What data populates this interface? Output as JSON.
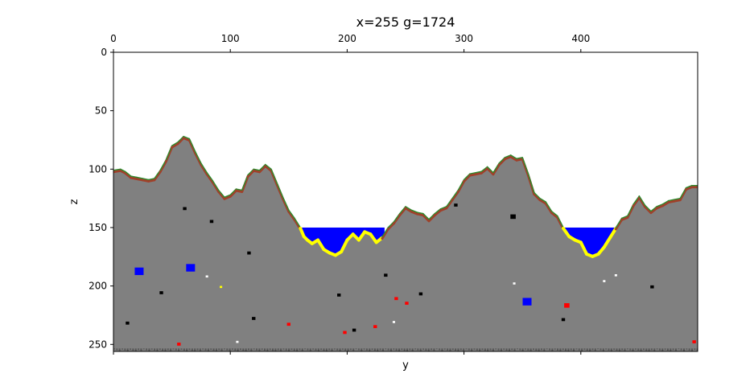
{
  "chart_data": {
    "type": "heatmap",
    "title": "x=255 g=1724",
    "xlabel": "y",
    "ylabel": "z",
    "x_axis_position": "top",
    "xlim": [
      0,
      500
    ],
    "ylim": [
      256,
      0
    ],
    "x_ticks": [
      0,
      100,
      200,
      300,
      400
    ],
    "y_ticks": [
      0,
      50,
      100,
      150,
      200,
      250
    ],
    "grid": false,
    "water_level": 150,
    "colors": {
      "background": "#ffffff",
      "air": "#ffffff",
      "stone": "#808080",
      "water": "#0000ff",
      "sand": "#ffff00",
      "dirt": "#a0402a",
      "grass": "#2e8b2e",
      "lava": "#ff0000",
      "cave": "#000000",
      "bedrock": "#555555",
      "ore_white": "#ffffff",
      "ore_yellow": "#ffff00"
    },
    "terrain_surface": [
      [
        0,
        101
      ],
      [
        6,
        100
      ],
      [
        10,
        102
      ],
      [
        15,
        106
      ],
      [
        20,
        107
      ],
      [
        25,
        108
      ],
      [
        30,
        109
      ],
      [
        35,
        108
      ],
      [
        40,
        101
      ],
      [
        45,
        92
      ],
      [
        50,
        80
      ],
      [
        55,
        77
      ],
      [
        60,
        72
      ],
      [
        65,
        74
      ],
      [
        70,
        85
      ],
      [
        75,
        95
      ],
      [
        80,
        103
      ],
      [
        85,
        110
      ],
      [
        90,
        118
      ],
      [
        95,
        124
      ],
      [
        100,
        122
      ],
      [
        105,
        117
      ],
      [
        110,
        118
      ],
      [
        115,
        105
      ],
      [
        120,
        100
      ],
      [
        125,
        101
      ],
      [
        130,
        96
      ],
      [
        135,
        100
      ],
      [
        140,
        112
      ],
      [
        145,
        124
      ],
      [
        150,
        135
      ],
      [
        155,
        142
      ],
      [
        160,
        150
      ],
      [
        163,
        157
      ],
      [
        166,
        160
      ],
      [
        170,
        163
      ],
      [
        175,
        160
      ],
      [
        180,
        168
      ],
      [
        185,
        171
      ],
      [
        190,
        173
      ],
      [
        195,
        170
      ],
      [
        200,
        160
      ],
      [
        205,
        155
      ],
      [
        210,
        160
      ],
      [
        215,
        153
      ],
      [
        220,
        155
      ],
      [
        225,
        162
      ],
      [
        230,
        158
      ],
      [
        235,
        150
      ],
      [
        240,
        145
      ],
      [
        245,
        138
      ],
      [
        250,
        132
      ],
      [
        255,
        135
      ],
      [
        260,
        137
      ],
      [
        265,
        138
      ],
      [
        270,
        143
      ],
      [
        275,
        138
      ],
      [
        280,
        134
      ],
      [
        285,
        132
      ],
      [
        290,
        125
      ],
      [
        295,
        118
      ],
      [
        300,
        109
      ],
      [
        305,
        104
      ],
      [
        310,
        103
      ],
      [
        315,
        102
      ],
      [
        320,
        98
      ],
      [
        325,
        103
      ],
      [
        330,
        95
      ],
      [
        335,
        90
      ],
      [
        340,
        88
      ],
      [
        345,
        91
      ],
      [
        350,
        90
      ],
      [
        355,
        104
      ],
      [
        360,
        120
      ],
      [
        365,
        125
      ],
      [
        370,
        128
      ],
      [
        375,
        136
      ],
      [
        380,
        140
      ],
      [
        385,
        150
      ],
      [
        390,
        157
      ],
      [
        395,
        160
      ],
      [
        400,
        162
      ],
      [
        405,
        172
      ],
      [
        410,
        174
      ],
      [
        415,
        172
      ],
      [
        420,
        166
      ],
      [
        425,
        158
      ],
      [
        430,
        150
      ],
      [
        435,
        142
      ],
      [
        440,
        140
      ],
      [
        445,
        130
      ],
      [
        450,
        123
      ],
      [
        455,
        131
      ],
      [
        460,
        136
      ],
      [
        465,
        132
      ],
      [
        470,
        130
      ],
      [
        475,
        127
      ],
      [
        480,
        126
      ],
      [
        485,
        125
      ],
      [
        490,
        116
      ],
      [
        495,
        114
      ],
      [
        500,
        114
      ]
    ],
    "water_bodies": [
      {
        "y_start": 161,
        "y_end": 232
      },
      {
        "y_start": 385,
        "y_end": 430
      }
    ],
    "blobs": [
      {
        "y": 22,
        "z": 188,
        "material": "water",
        "size": 2.5
      },
      {
        "y": 66,
        "z": 185,
        "material": "water",
        "size": 2.5
      },
      {
        "y": 354,
        "z": 214,
        "material": "water",
        "size": 2.5
      },
      {
        "y": 61,
        "z": 134,
        "material": "cave",
        "size": 1
      },
      {
        "y": 84,
        "z": 145,
        "material": "cave",
        "size": 1
      },
      {
        "y": 116,
        "z": 172,
        "material": "cave",
        "size": 1
      },
      {
        "y": 293,
        "z": 131,
        "material": "cave",
        "size": 1
      },
      {
        "y": 342,
        "z": 141,
        "material": "cave",
        "size": 1.5
      },
      {
        "y": 41,
        "z": 206,
        "material": "cave",
        "size": 1
      },
      {
        "y": 193,
        "z": 208,
        "material": "cave",
        "size": 1
      },
      {
        "y": 233,
        "z": 191,
        "material": "cave",
        "size": 1
      },
      {
        "y": 263,
        "z": 207,
        "material": "cave",
        "size": 1
      },
      {
        "y": 461,
        "z": 201,
        "material": "cave",
        "size": 1
      },
      {
        "y": 12,
        "z": 232,
        "material": "cave",
        "size": 1
      },
      {
        "y": 120,
        "z": 228,
        "material": "cave",
        "size": 1
      },
      {
        "y": 206,
        "z": 238,
        "material": "cave",
        "size": 1
      },
      {
        "y": 385,
        "z": 229,
        "material": "cave",
        "size": 1
      },
      {
        "y": 251,
        "z": 215,
        "material": "lava",
        "size": 1
      },
      {
        "y": 242,
        "z": 211,
        "material": "lava",
        "size": 1
      },
      {
        "y": 388,
        "z": 217,
        "material": "lava",
        "size": 1.5
      },
      {
        "y": 150,
        "z": 233,
        "material": "lava",
        "size": 1
      },
      {
        "y": 224,
        "z": 235,
        "material": "lava",
        "size": 1
      },
      {
        "y": 198,
        "z": 240,
        "material": "lava",
        "size": 1
      },
      {
        "y": 56,
        "z": 250,
        "material": "lava",
        "size": 1
      },
      {
        "y": 497,
        "z": 248,
        "material": "lava",
        "size": 1
      },
      {
        "y": 80,
        "z": 192,
        "material": "ore_white",
        "size": 0.7
      },
      {
        "y": 343,
        "z": 198,
        "material": "ore_white",
        "size": 0.7
      },
      {
        "y": 420,
        "z": 196,
        "material": "ore_white",
        "size": 0.7
      },
      {
        "y": 430,
        "z": 191,
        "material": "ore_white",
        "size": 0.7
      },
      {
        "y": 240,
        "z": 231,
        "material": "ore_white",
        "size": 0.7
      },
      {
        "y": 106,
        "z": 248,
        "material": "ore_white",
        "size": 0.7
      },
      {
        "y": 92,
        "z": 201,
        "material": "ore_yellow",
        "size": 0.7
      }
    ]
  }
}
